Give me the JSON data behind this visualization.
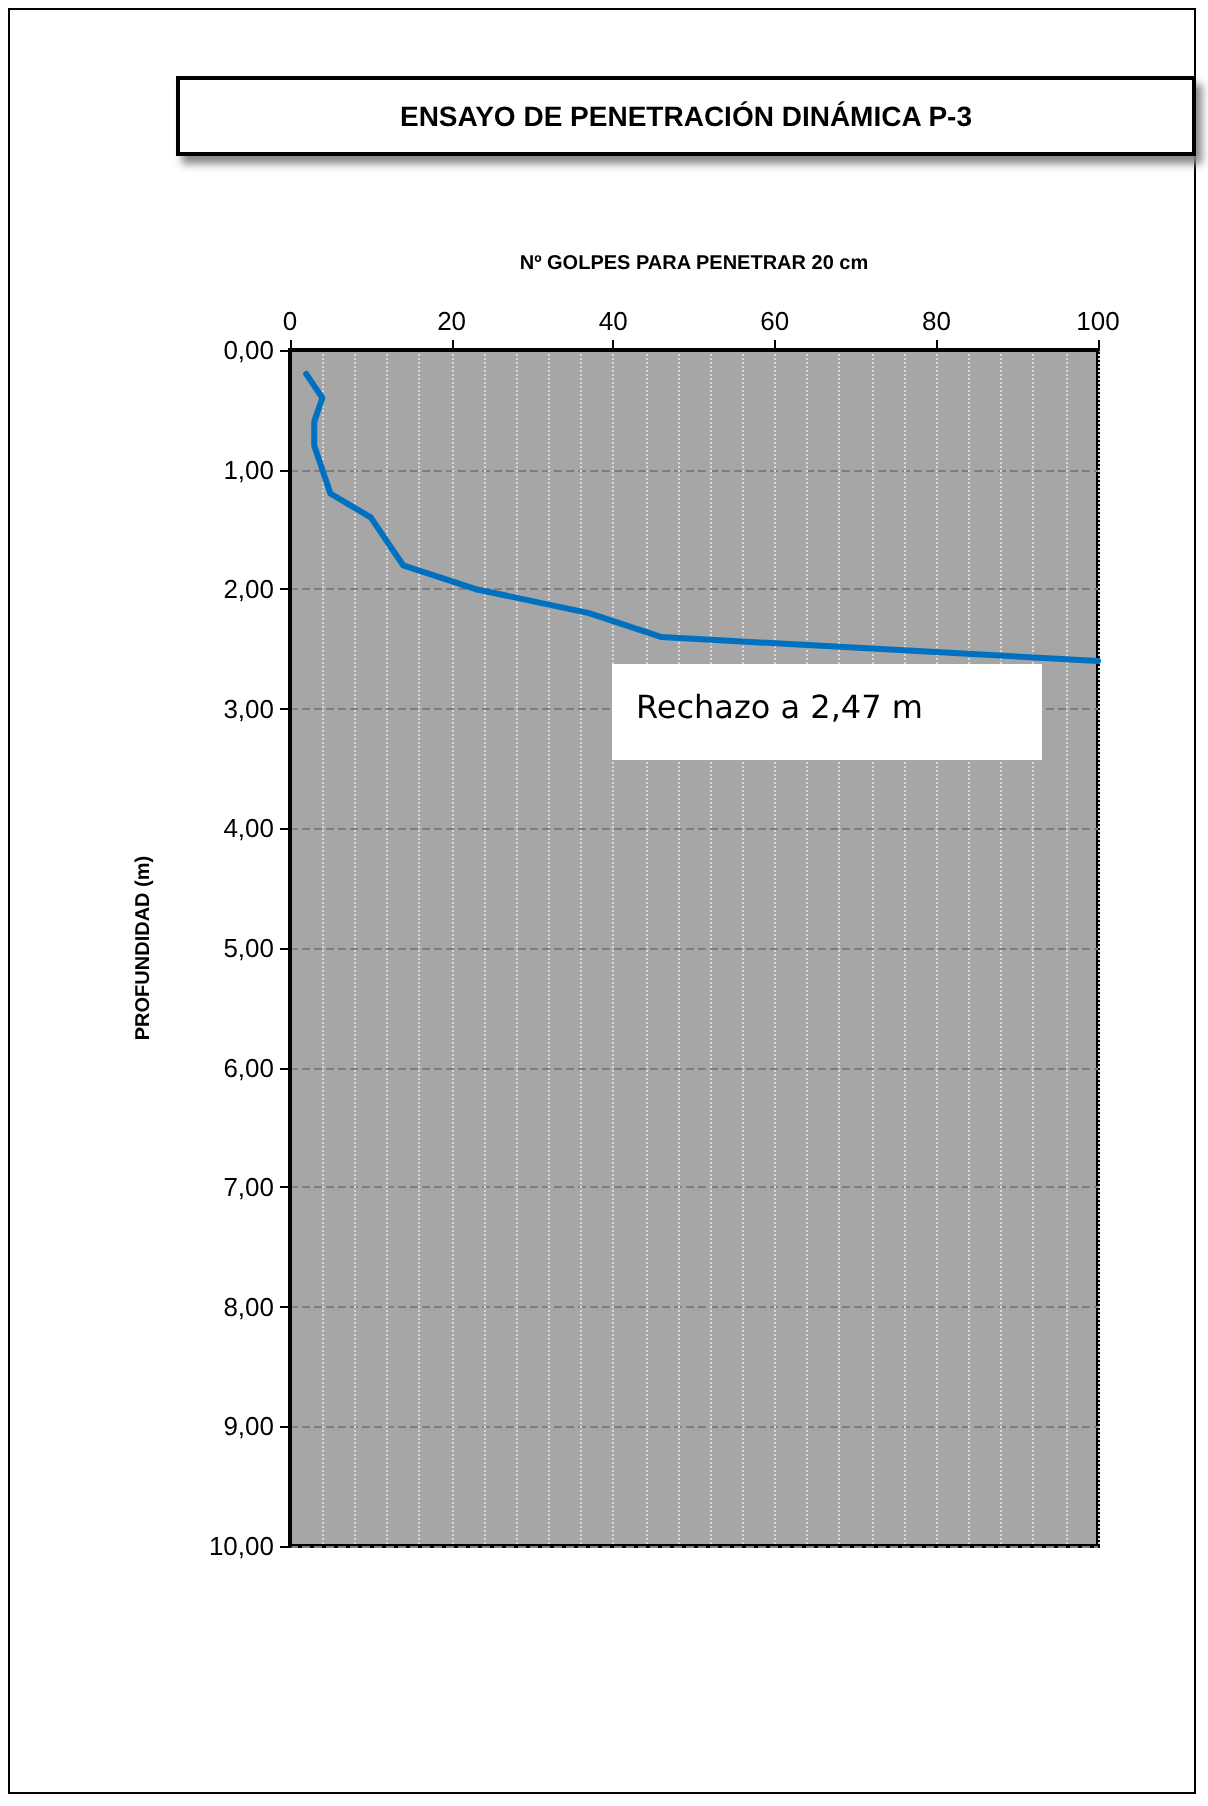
{
  "chart_data": {
    "type": "line",
    "title": "ENSAYO DE PENETRACIÓN DINÁMICA P-3",
    "xlabel": "Nº GOLPES PARA PENETRAR 20 cm",
    "ylabel": "PROFUNDIDAD (m)",
    "annotations": [
      "Rechazo a 2,47 m"
    ],
    "series": [
      {
        "color": "#0070c0",
        "x": [
          2,
          4,
          3,
          3,
          4,
          5,
          10,
          12,
          14,
          23,
          37,
          46,
          100
        ],
        "values": [
          0.2,
          0.4,
          0.6,
          0.8,
          1.0,
          1.2,
          1.4,
          1.6,
          1.8,
          2.0,
          2.2,
          2.4,
          2.6
        ]
      }
    ],
    "xlim": [
      0,
      100
    ],
    "xticks": [
      0,
      20,
      40,
      60,
      80,
      100
    ],
    "ylim": [
      10,
      0
    ],
    "yticks": [
      {
        "value": 0,
        "label": "0,00"
      },
      {
        "value": 1,
        "label": "1,00"
      },
      {
        "value": 2,
        "label": "2,00"
      },
      {
        "value": 3,
        "label": "3,00"
      },
      {
        "value": 4,
        "label": "4,00"
      },
      {
        "value": 5,
        "label": "5,00"
      },
      {
        "value": 6,
        "label": "6,00"
      },
      {
        "value": 7,
        "label": "7,00"
      },
      {
        "value": 8,
        "label": "8,00"
      },
      {
        "value": 9,
        "label": "9,00"
      },
      {
        "value": 10,
        "label": "10,00"
      }
    ],
    "grid": true,
    "marker": "none",
    "line_style": "solid"
  }
}
